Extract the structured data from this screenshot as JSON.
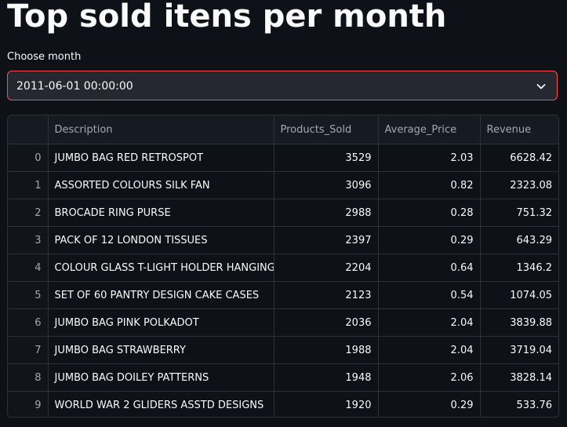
{
  "page": {
    "title": "Top sold itens per month"
  },
  "month_select": {
    "label": "Choose month",
    "value": "2011-06-01 00:00:00",
    "icon": "chevron-down-icon",
    "accent_color": "#ff4b4b"
  },
  "table": {
    "columns": [
      "",
      "Description",
      "Products_Sold",
      "Average_Price",
      "Revenue"
    ],
    "rows": [
      {
        "index": "0",
        "description": "JUMBO BAG RED RETROSPOT",
        "products_sold": "3529",
        "average_price": "2.03",
        "revenue": "6628.42"
      },
      {
        "index": "1",
        "description": "ASSORTED COLOURS SILK FAN",
        "products_sold": "3096",
        "average_price": "0.82",
        "revenue": "2323.08"
      },
      {
        "index": "2",
        "description": "BROCADE RING PURSE",
        "products_sold": "2988",
        "average_price": "0.28",
        "revenue": "751.32"
      },
      {
        "index": "3",
        "description": "PACK OF 12 LONDON TISSUES",
        "products_sold": "2397",
        "average_price": "0.29",
        "revenue": "643.29"
      },
      {
        "index": "4",
        "description": "COLOUR GLASS T-LIGHT HOLDER HANGING",
        "products_sold": "2204",
        "average_price": "0.64",
        "revenue": "1346.2"
      },
      {
        "index": "5",
        "description": "SET OF 60 PANTRY DESIGN CAKE CASES",
        "products_sold": "2123",
        "average_price": "0.54",
        "revenue": "1074.05"
      },
      {
        "index": "6",
        "description": "JUMBO BAG PINK POLKADOT",
        "products_sold": "2036",
        "average_price": "2.04",
        "revenue": "3839.88"
      },
      {
        "index": "7",
        "description": "JUMBO BAG STRAWBERRY",
        "products_sold": "1988",
        "average_price": "2.04",
        "revenue": "3719.04"
      },
      {
        "index": "8",
        "description": "JUMBO BAG DOILEY PATTERNS",
        "products_sold": "1948",
        "average_price": "2.06",
        "revenue": "3828.14"
      },
      {
        "index": "9",
        "description": "WORLD WAR 2 GLIDERS ASSTD DESIGNS",
        "products_sold": "1920",
        "average_price": "0.29",
        "revenue": "533.76"
      }
    ]
  }
}
